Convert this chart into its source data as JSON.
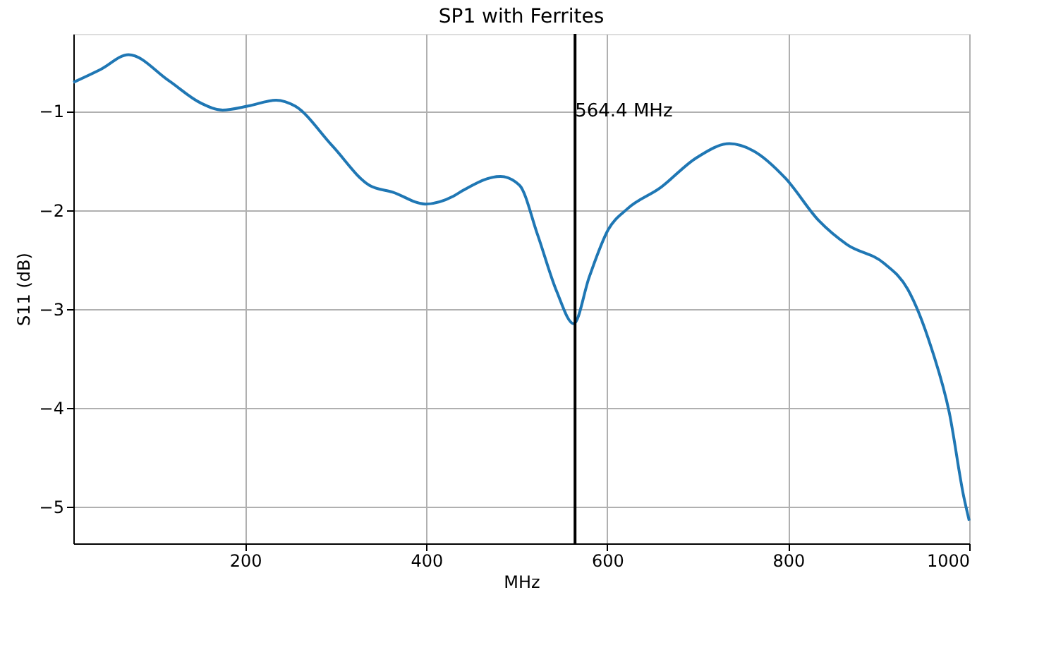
{
  "chart_data": {
    "type": "line",
    "title": "SP1 with Ferrites",
    "xlabel": "MHz",
    "ylabel": "S11 (dB)",
    "xlim": [
      10,
      1000
    ],
    "xticks": [
      200,
      400,
      600,
      800,
      1000
    ],
    "ylim": [
      -5.37,
      -0.22
    ],
    "yticks": [
      {
        "value": -5,
        "label": "−5"
      },
      {
        "value": -4,
        "label": "−4"
      },
      {
        "value": -3,
        "label": "−3"
      },
      {
        "value": -2,
        "label": "−2"
      },
      {
        "value": -1,
        "label": "−1"
      }
    ],
    "grid": true,
    "marker": "none",
    "line_style": "solid",
    "series": [
      {
        "color": "#1f77b4",
        "x": [
          10,
          40,
          71,
          115,
          151,
          175,
          203,
          234,
          255,
          296,
          337,
          363,
          399,
          430,
          441,
          482,
          503,
          523,
          544,
          563,
          580,
          601,
          622,
          658,
          699,
          735,
          761,
          797,
          834,
          865,
          906,
          932,
          958,
          978,
          994,
          1000
        ],
        "values": [
          -0.71,
          -0.58,
          -0.43,
          -0.69,
          -0.92,
          -0.99,
          -0.95,
          -0.89,
          -0.95,
          -1.35,
          -1.75,
          -1.82,
          -1.94,
          -1.86,
          -1.8,
          -1.66,
          -1.75,
          -2.25,
          -2.82,
          -3.15,
          -2.68,
          -2.2,
          -1.99,
          -1.78,
          -1.47,
          -1.33,
          -1.4,
          -1.68,
          -2.11,
          -2.35,
          -2.54,
          -2.8,
          -3.39,
          -4.05,
          -4.9,
          -5.14
        ]
      }
    ],
    "ref_lines": [
      {
        "axis": "x",
        "value": 564.4,
        "color": "#000000"
      }
    ],
    "annotations": [
      {
        "text": "564.4 MHz",
        "x": 564.4,
        "y": -1
      }
    ]
  }
}
